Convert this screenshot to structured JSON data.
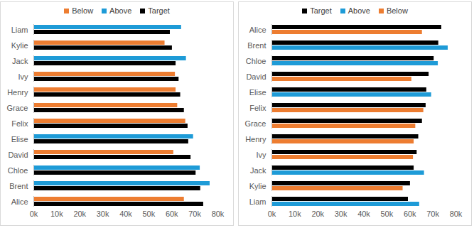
{
  "chart_data": [
    {
      "type": "bar",
      "orientation": "horizontal",
      "grid": false,
      "legend": "top",
      "categories": [
        "Alice",
        "Brent",
        "Chloe",
        "David",
        "Elise",
        "Felix",
        "Grace",
        "Henry",
        "Ivy",
        "Jack",
        "Kylie",
        "Liam"
      ],
      "series": [
        {
          "name": "Below",
          "color": "#ed7d31",
          "values": [
            65400,
            null,
            null,
            60800,
            null,
            66000,
            62500,
            61800,
            61500,
            null,
            57000,
            null
          ]
        },
        {
          "name": "Above",
          "color": "#1e9bd7",
          "values": [
            null,
            76600,
            72300,
            null,
            69400,
            null,
            null,
            null,
            null,
            66300,
            null,
            64200
          ]
        },
        {
          "name": "Target",
          "color": "#000000",
          "values": [
            73800,
            72500,
            70500,
            68300,
            67300,
            67000,
            65400,
            63800,
            63100,
            61800,
            60200,
            59300
          ]
        }
      ],
      "xlim": [
        0,
        80000
      ],
      "xticks": [
        {
          "value": 0,
          "label": "0k"
        },
        {
          "value": 10000,
          "label": "10k"
        },
        {
          "value": 20000,
          "label": "20k"
        },
        {
          "value": 30000,
          "label": "30k"
        },
        {
          "value": 40000,
          "label": "40k"
        },
        {
          "value": 50000,
          "label": "50k"
        },
        {
          "value": 60000,
          "label": "60k"
        },
        {
          "value": 70000,
          "label": "70k"
        },
        {
          "value": 80000,
          "label": "80k"
        }
      ]
    },
    {
      "type": "bar",
      "orientation": "horizontal",
      "grid": false,
      "legend": "top",
      "categories": [
        "Alice",
        "Brent",
        "Chloe",
        "David",
        "Elise",
        "Felix",
        "Grace",
        "Henry",
        "Ivy",
        "Jack",
        "Kylie",
        "Liam"
      ],
      "series": [
        {
          "name": "Target",
          "color": "#000000",
          "values": [
            73800,
            72500,
            70500,
            68300,
            67300,
            67000,
            65400,
            63800,
            63100,
            61800,
            60200,
            59300
          ]
        },
        {
          "name": "Above",
          "color": "#1e9bd7",
          "values": [
            null,
            76600,
            72300,
            null,
            69400,
            null,
            null,
            null,
            null,
            66300,
            null,
            64200
          ]
        },
        {
          "name": "Below",
          "color": "#ed7d31",
          "values": [
            65400,
            null,
            null,
            60800,
            null,
            66000,
            62500,
            61800,
            61500,
            null,
            57000,
            null
          ]
        }
      ],
      "xlim": [
        0,
        80000
      ],
      "xticks": [
        {
          "value": 0,
          "label": "0k"
        },
        {
          "value": 10000,
          "label": "10k"
        },
        {
          "value": 20000,
          "label": "20k"
        },
        {
          "value": 30000,
          "label": "30k"
        },
        {
          "value": 40000,
          "label": "40k"
        },
        {
          "value": 50000,
          "label": "50k"
        },
        {
          "value": 60000,
          "label": "60k"
        },
        {
          "value": 70000,
          "label": "70k"
        },
        {
          "value": 80000,
          "label": "80k"
        }
      ]
    }
  ]
}
